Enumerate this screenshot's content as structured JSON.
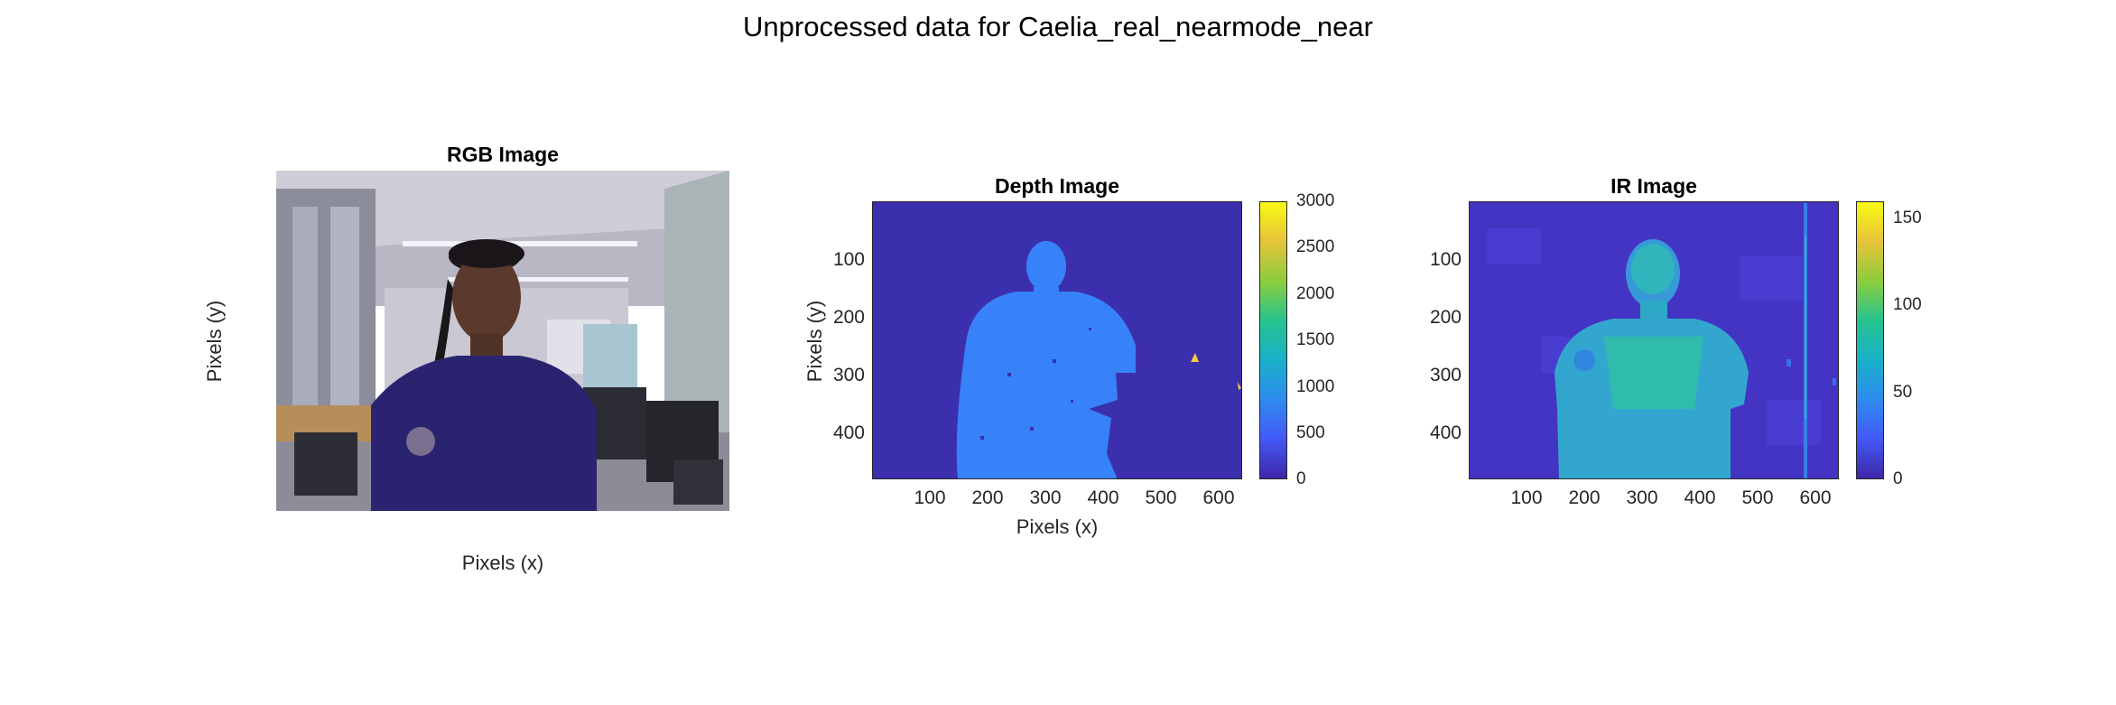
{
  "figure": {
    "title": "Unprocessed data for Caelia_real_nearmode_near"
  },
  "rgb": {
    "title": "RGB Image",
    "xlabel": "Pixels (x)",
    "ylabel": "Pixels (y)"
  },
  "depth": {
    "title": "Depth Image",
    "xlabel": "Pixels (x)",
    "ylabel": "Pixels (y)",
    "xticks": [
      "100",
      "200",
      "300",
      "400",
      "500",
      "600"
    ],
    "yticks": [
      "100",
      "200",
      "300",
      "400"
    ],
    "cbar_ticks": [
      "0",
      "500",
      "1000",
      "1500",
      "2000",
      "2500",
      "3000"
    ]
  },
  "ir": {
    "title": "IR Image",
    "xticks": [
      "100",
      "200",
      "300",
      "400",
      "500",
      "600"
    ],
    "yticks": [
      "100",
      "200",
      "300",
      "400"
    ],
    "cbar_ticks": [
      "0",
      "50",
      "100",
      "150"
    ]
  },
  "chart_data": [
    {
      "type": "heatmap",
      "title": "RGB Image",
      "xlabel": "Pixels (x)",
      "ylabel": "Pixels (y)",
      "content": "photograph"
    },
    {
      "type": "heatmap",
      "title": "Depth Image",
      "xlabel": "Pixels (x)",
      "ylabel": "Pixels (y)",
      "xlim": [
        1,
        640
      ],
      "ylim": [
        480,
        1
      ],
      "xticks": [
        100,
        200,
        300,
        400,
        500,
        600
      ],
      "yticks": [
        100,
        200,
        300,
        400
      ],
      "colormap": "parula",
      "clim": [
        0,
        3000
      ],
      "colorbar_ticks": [
        0,
        500,
        1000,
        1500,
        2000,
        2500,
        3000
      ],
      "regions": [
        {
          "region": "background",
          "approx_value": 0
        },
        {
          "region": "person",
          "approx_value": 1000
        },
        {
          "region": "small spot near (555,275)",
          "approx_value": 2600
        }
      ]
    },
    {
      "type": "heatmap",
      "title": "IR Image",
      "xlim": [
        1,
        640
      ],
      "ylim": [
        480,
        1
      ],
      "xticks": [
        100,
        200,
        300,
        400,
        500,
        600
      ],
      "yticks": [
        100,
        200,
        300,
        400
      ],
      "colormap": "parula",
      "clim": [
        0,
        160
      ],
      "colorbar_ticks": [
        0,
        50,
        100,
        150
      ],
      "regions": [
        {
          "region": "background",
          "approx_value": 10
        },
        {
          "region": "person",
          "approx_value": 65
        },
        {
          "region": "vertical streak near x=580",
          "approx_value": 60
        }
      ]
    }
  ]
}
